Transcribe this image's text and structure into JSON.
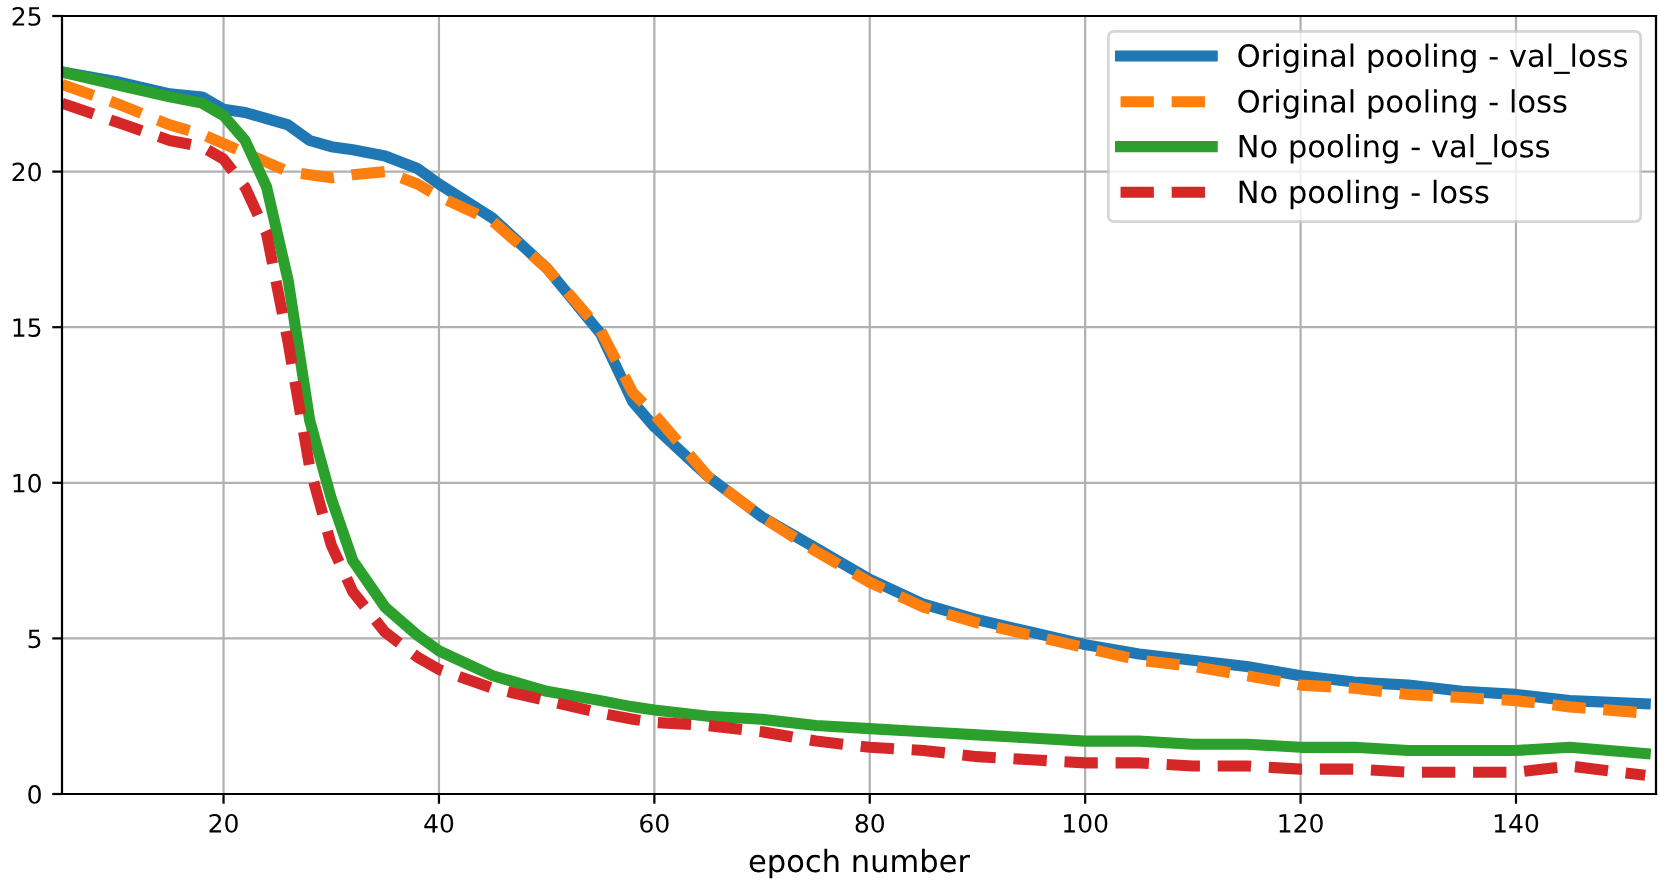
{
  "chart_data": {
    "type": "line",
    "xlabel": "epoch number",
    "xlim": [
      5,
      153
    ],
    "ylim": [
      0,
      25
    ],
    "xticks": [
      20,
      40,
      60,
      80,
      100,
      120,
      140
    ],
    "yticks": [
      0,
      5,
      10,
      15,
      20,
      25
    ],
    "grid": true,
    "legend": "top right",
    "x": [
      5,
      10,
      15,
      18,
      20,
      22,
      24,
      26,
      28,
      30,
      32,
      35,
      38,
      40,
      45,
      50,
      55,
      58,
      60,
      65,
      70,
      75,
      80,
      85,
      90,
      95,
      100,
      105,
      110,
      115,
      120,
      125,
      130,
      135,
      140,
      145,
      152
    ],
    "series": [
      {
        "name": "Original pooling - val_loss",
        "color": "#1f77b4",
        "line_style": "solid",
        "values": [
          23.2,
          22.9,
          22.5,
          22.4,
          22.0,
          21.9,
          21.7,
          21.5,
          21.0,
          20.8,
          20.7,
          20.5,
          20.1,
          19.6,
          18.5,
          16.9,
          14.8,
          12.6,
          11.8,
          10.2,
          8.9,
          7.9,
          6.9,
          6.1,
          5.6,
          5.2,
          4.8,
          4.5,
          4.3,
          4.1,
          3.8,
          3.6,
          3.5,
          3.3,
          3.2,
          3.0,
          2.9
        ]
      },
      {
        "name": "Original pooling - loss",
        "color": "#ff7f0e",
        "line_style": "dashed",
        "values": [
          22.8,
          22.2,
          21.5,
          21.2,
          20.9,
          20.6,
          20.3,
          20.0,
          19.9,
          19.8,
          19.9,
          20.0,
          19.6,
          19.2,
          18.4,
          16.9,
          14.9,
          12.9,
          12.2,
          10.2,
          8.9,
          7.8,
          6.8,
          6.0,
          5.5,
          5.1,
          4.7,
          4.3,
          4.1,
          3.8,
          3.5,
          3.4,
          3.2,
          3.1,
          3.0,
          2.8,
          2.6
        ]
      },
      {
        "name": "No pooling - val_loss",
        "color": "#2ca02c",
        "line_style": "solid",
        "values": [
          23.2,
          22.8,
          22.4,
          22.2,
          21.8,
          21.0,
          19.5,
          16.5,
          12.0,
          9.5,
          7.5,
          6.0,
          5.1,
          4.6,
          3.8,
          3.3,
          3.0,
          2.8,
          2.7,
          2.5,
          2.4,
          2.2,
          2.1,
          2.0,
          1.9,
          1.8,
          1.7,
          1.7,
          1.6,
          1.6,
          1.5,
          1.5,
          1.4,
          1.4,
          1.4,
          1.5,
          1.3
        ]
      },
      {
        "name": "No pooling - loss",
        "color": "#d62728",
        "line_style": "dashed",
        "values": [
          22.2,
          21.6,
          21.0,
          20.8,
          20.4,
          19.5,
          18.0,
          14.5,
          10.5,
          8.0,
          6.5,
          5.2,
          4.4,
          4.0,
          3.4,
          3.0,
          2.6,
          2.4,
          2.3,
          2.2,
          2.0,
          1.7,
          1.5,
          1.4,
          1.2,
          1.1,
          1.0,
          1.0,
          0.9,
          0.9,
          0.8,
          0.8,
          0.7,
          0.7,
          0.7,
          0.9,
          0.6
        ]
      }
    ]
  }
}
